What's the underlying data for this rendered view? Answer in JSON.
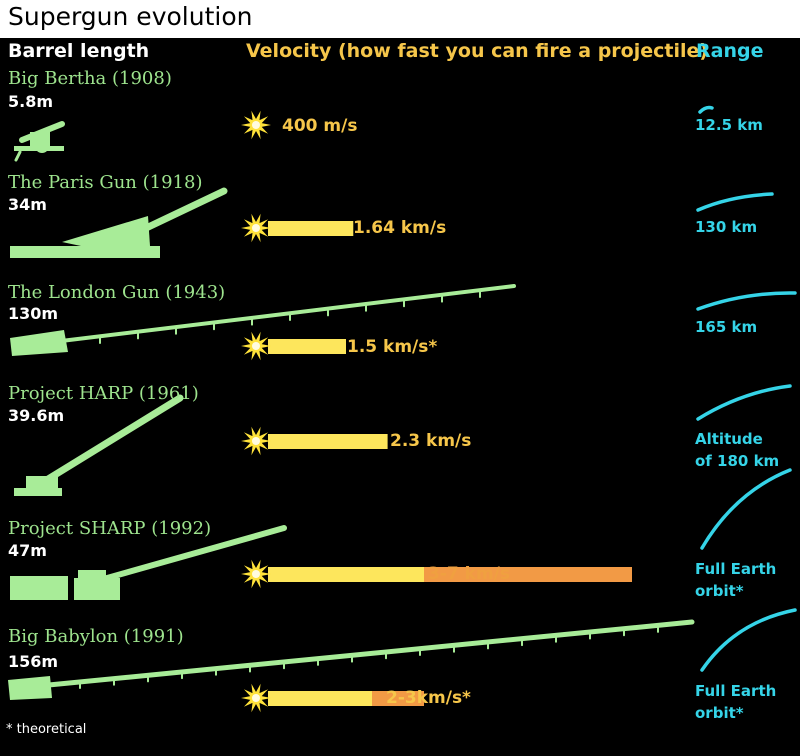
{
  "title": "Supergun evolution",
  "headers": {
    "barrel": "Barrel length",
    "velocity": "Velocity (how fast you can fire a projectile)",
    "range": "Range"
  },
  "footnote": "* theoretical",
  "colors": {
    "gun": "#a8ec98",
    "velocity_bar": "#fde65c",
    "velocity_bar_extra": "#f29a45",
    "range": "#35d4e8",
    "flash": "#ffe23a"
  },
  "chart_data": {
    "type": "bar",
    "title": "Supergun evolution",
    "xlabel": "Velocity (how fast you can fire a projectile)",
    "categories": [
      "Big Bertha (1908)",
      "The Paris Gun (1918)",
      "The London Gun (1943)",
      "Project HARP (1961)",
      "Project SHARP (1992)",
      "Big Babylon (1991)"
    ],
    "guns": [
      {
        "name": "Big Bertha (1908)",
        "barrel_length": "5.8m",
        "barrel_m": 5.8,
        "velocity_label": "400 m/s",
        "velocity_kms": 0.4,
        "range_label": "12.5 km"
      },
      {
        "name": "The Paris Gun (1918)",
        "barrel_length": "34m",
        "barrel_m": 34,
        "velocity_label": "1.64 km/s",
        "velocity_kms": 1.64,
        "range_label": "130 km"
      },
      {
        "name": "The London Gun (1943)",
        "barrel_length": "130m",
        "barrel_m": 130,
        "velocity_label": "1.5 km/s*",
        "velocity_kms": 1.5,
        "range_label": "165 km"
      },
      {
        "name": "Project HARP (1961)",
        "barrel_length": "39.6m",
        "barrel_m": 39.6,
        "velocity_label": "2.3 km/s",
        "velocity_kms": 2.3,
        "range_label": "Altitude\nof 180 km"
      },
      {
        "name": "Project SHARP (1992)",
        "barrel_length": "47m",
        "barrel_m": 47,
        "velocity_label": "3-7 km/s",
        "velocity_kms_min": 3,
        "velocity_kms_max": 7,
        "range_label": "Full Earth\norbit*"
      },
      {
        "name": "Big Babylon (1991)",
        "barrel_length": "156m",
        "barrel_m": 156,
        "velocity_label": "2-3km/s*",
        "velocity_kms_min": 2,
        "velocity_kms_max": 3,
        "range_label": "Full Earth\norbit*"
      }
    ]
  }
}
